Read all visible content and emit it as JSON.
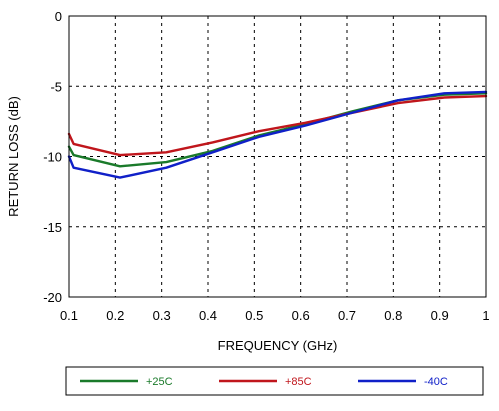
{
  "chart_data": {
    "type": "line",
    "xlabel": "FREQUENCY (GHz)",
    "ylabel": "RETURN LOSS (dB)",
    "xlim": [
      0.1,
      1.0
    ],
    "ylim": [
      -20,
      0
    ],
    "xticks": [
      0.1,
      0.2,
      0.3,
      0.4,
      0.5,
      0.6,
      0.7,
      0.8,
      0.9,
      1.0
    ],
    "xtick_labels": [
      "0.1",
      "0.2",
      "0.3",
      "0.4",
      "0.5",
      "0.6",
      "0.7",
      "0.8",
      "0.9",
      "1"
    ],
    "yticks": [
      0,
      -5,
      -10,
      -15,
      -20
    ],
    "ytick_labels": [
      "0",
      "-5",
      "-10",
      "-15",
      "-20"
    ],
    "grid": true,
    "grid_style": "dashed",
    "legend_position": "bottom",
    "series": [
      {
        "name": "+25C",
        "color": "#1a7a2a",
        "x": [
          0.1,
          0.11,
          0.21,
          0.31,
          0.41,
          0.51,
          0.61,
          0.71,
          0.81,
          0.91,
          1.0
        ],
        "y": [
          -9.3,
          -9.9,
          -10.7,
          -10.4,
          -9.6,
          -8.5,
          -7.7,
          -6.8,
          -6.0,
          -5.6,
          -5.5
        ]
      },
      {
        "name": "+85C",
        "color": "#c0161c",
        "x": [
          0.1,
          0.11,
          0.21,
          0.31,
          0.41,
          0.51,
          0.61,
          0.71,
          0.81,
          0.91,
          1.0
        ],
        "y": [
          -8.4,
          -9.1,
          -9.9,
          -9.7,
          -9.0,
          -8.2,
          -7.6,
          -6.9,
          -6.2,
          -5.8,
          -5.7
        ]
      },
      {
        "name": "-40C",
        "color": "#1020c8",
        "x": [
          0.1,
          0.11,
          0.21,
          0.31,
          0.41,
          0.51,
          0.61,
          0.71,
          0.81,
          0.91,
          1.0
        ],
        "y": [
          -10.0,
          -10.8,
          -11.5,
          -10.8,
          -9.7,
          -8.6,
          -7.8,
          -6.9,
          -6.0,
          -5.5,
          -5.4
        ]
      }
    ]
  }
}
